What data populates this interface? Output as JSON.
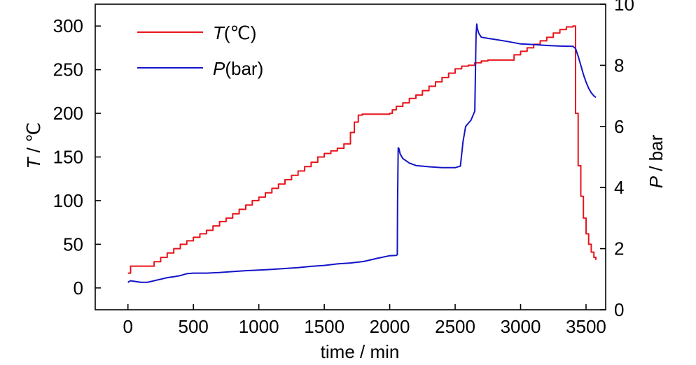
{
  "chart_data": {
    "type": "line",
    "x_axis": {
      "label": "time / min",
      "range": [
        -250,
        3650
      ],
      "ticks": [
        0,
        500,
        1000,
        1500,
        2000,
        2500,
        3000,
        3500
      ],
      "tick_labels": [
        "0",
        "500",
        "1000",
        "1500",
        "2000",
        "2500",
        "3000",
        "3500"
      ]
    },
    "y_left": {
      "label_italic": "T",
      "label_rest": " / ℃",
      "range": [
        -25,
        325
      ],
      "ticks": [
        0,
        50,
        100,
        150,
        200,
        250,
        300
      ],
      "tick_labels": [
        "0",
        "50",
        "100",
        "150",
        "200",
        "250",
        "300"
      ]
    },
    "y_right": {
      "label_italic": "P",
      "label_rest": " / bar",
      "range": [
        0,
        10
      ],
      "ticks": [
        0,
        2,
        4,
        6,
        8,
        10
      ],
      "tick_labels": [
        "0",
        "2",
        "4",
        "6",
        "8",
        "10"
      ]
    },
    "grid": false,
    "legend_position": "top-left",
    "series": [
      {
        "name_italic": "T",
        "name_rest": "(℃)",
        "axis": "left",
        "color": "#e8141c",
        "stairs": true,
        "x": [
          0,
          20,
          150,
          200,
          250,
          300,
          350,
          400,
          450,
          500,
          550,
          600,
          650,
          700,
          750,
          800,
          850,
          900,
          950,
          1000,
          1050,
          1100,
          1150,
          1200,
          1250,
          1300,
          1350,
          1400,
          1450,
          1500,
          1550,
          1600,
          1650,
          1700,
          1730,
          1760,
          1790,
          1820,
          1850,
          1900,
          2000,
          2020,
          2050,
          2100,
          2150,
          2200,
          2250,
          2300,
          2350,
          2400,
          2450,
          2500,
          2550,
          2600,
          2650,
          2700,
          2750,
          2800,
          2900,
          2950,
          3000,
          3050,
          3100,
          3150,
          3200,
          3250,
          3300,
          3350,
          3400,
          3420,
          3440,
          3460,
          3480,
          3500,
          3520,
          3540,
          3560,
          3575
        ],
        "y": [
          17,
          25,
          25,
          30,
          35,
          40,
          45,
          50,
          54,
          58,
          62,
          66,
          71,
          76,
          80,
          85,
          90,
          95,
          100,
          104,
          109,
          114,
          119,
          124,
          129,
          134,
          139,
          144,
          150,
          154,
          157,
          160,
          165,
          178,
          190,
          198,
          199,
          199,
          199,
          199,
          200,
          204,
          208,
          212,
          217,
          221,
          226,
          231,
          236,
          241,
          246,
          251,
          254,
          255,
          258,
          260,
          261,
          261,
          261,
          267,
          271,
          275,
          279,
          283,
          287,
          292,
          296,
          299,
          300,
          200,
          140,
          105,
          80,
          62,
          50,
          41,
          35,
          32
        ]
      },
      {
        "name_italic": "P",
        "name_rest": "(bar)",
        "axis": "right",
        "color": "#1414c8",
        "stairs": false,
        "x": [
          0,
          20,
          50,
          100,
          150,
          200,
          250,
          300,
          350,
          400,
          450,
          500,
          600,
          700,
          800,
          900,
          1000,
          1100,
          1200,
          1300,
          1400,
          1500,
          1600,
          1700,
          1800,
          1900,
          2000,
          2050,
          2058,
          2060,
          2065,
          2070,
          2080,
          2100,
          2150,
          2200,
          2300,
          2400,
          2500,
          2540,
          2560,
          2580,
          2600,
          2620,
          2650,
          2660,
          2665,
          2670,
          2680,
          2700,
          2750,
          2800,
          2900,
          3000,
          3100,
          3200,
          3300,
          3400,
          3420,
          3440,
          3460,
          3480,
          3500,
          3520,
          3540,
          3560,
          3575
        ],
        "y": [
          0.9,
          0.95,
          0.93,
          0.9,
          0.9,
          0.95,
          1.0,
          1.05,
          1.08,
          1.12,
          1.18,
          1.2,
          1.2,
          1.22,
          1.25,
          1.28,
          1.3,
          1.32,
          1.35,
          1.38,
          1.42,
          1.45,
          1.5,
          1.53,
          1.58,
          1.68,
          1.77,
          1.78,
          1.8,
          3.5,
          5.3,
          5.28,
          5.1,
          4.95,
          4.8,
          4.72,
          4.68,
          4.65,
          4.65,
          4.7,
          5.5,
          6.0,
          6.1,
          6.2,
          6.5,
          9.0,
          9.35,
          9.2,
          9.05,
          8.92,
          8.88,
          8.85,
          8.78,
          8.7,
          8.68,
          8.65,
          8.63,
          8.62,
          8.55,
          8.3,
          8.0,
          7.7,
          7.45,
          7.25,
          7.1,
          7.0,
          6.95
        ]
      }
    ]
  }
}
